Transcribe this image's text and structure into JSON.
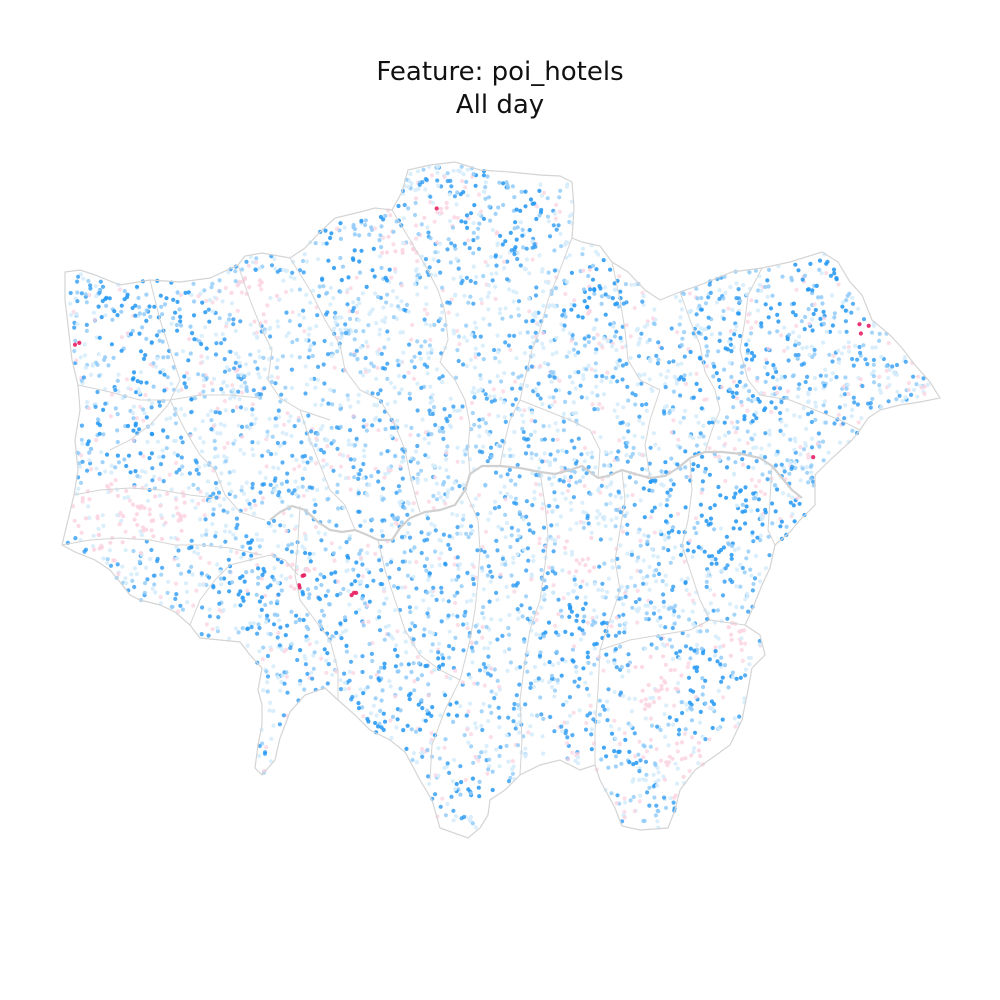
{
  "title": "Feature: poi_hotels",
  "subtitle": "All day",
  "colors": {
    "background": "#ffffff",
    "boundary": "#d4d4d4",
    "river": "#d0d0d0",
    "high_blue": "#2196f3",
    "mid_blue": "#90caf9",
    "light_blue": "#d6ecfb",
    "light_pink": "#fbd3e0",
    "high_pink": "#e91e63"
  }
}
